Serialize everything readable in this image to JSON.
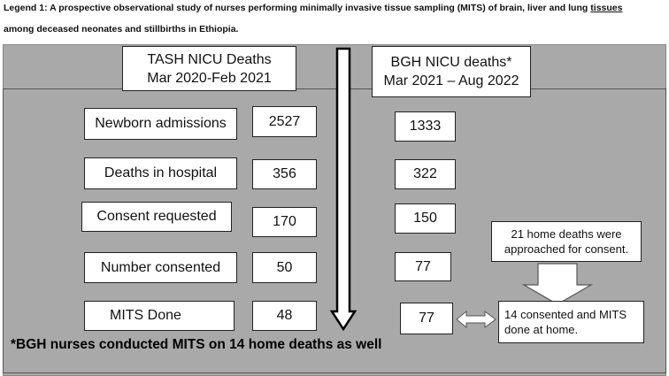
{
  "legend": {
    "title": "Legend 1: A prospective observational study of nurses performing minimally invasive tissue sampling (MITS) of brain, liver and lung",
    "underlined": "tissues",
    "line2": "among deceased neonates and stillbirths in Ethiopia."
  },
  "tash": {
    "title": "TASH NICU Deaths",
    "period": "Mar 2020-Feb 2021"
  },
  "bgh": {
    "title": "BGH NICU deaths*",
    "period": "Mar 2021 – Aug 2022"
  },
  "rows": [
    {
      "label": "Newborn admissions",
      "tash": 2527,
      "bgh": 1333
    },
    {
      "label": "Deaths in hospital",
      "tash": 356,
      "bgh": 322
    },
    {
      "label": "Consent requested",
      "tash": 170,
      "bgh": 150
    },
    {
      "label": "Number consented",
      "tash": 50,
      "bgh": 77
    },
    {
      "label": "MITS Done",
      "tash": 48,
      "bgh": 77
    }
  ],
  "home": {
    "approached": "21 home deaths were approached for consent.",
    "consented": "14 consented and MITS done at home."
  },
  "footnote": "*BGH nurses conducted MITS on 14 home deaths as well"
}
